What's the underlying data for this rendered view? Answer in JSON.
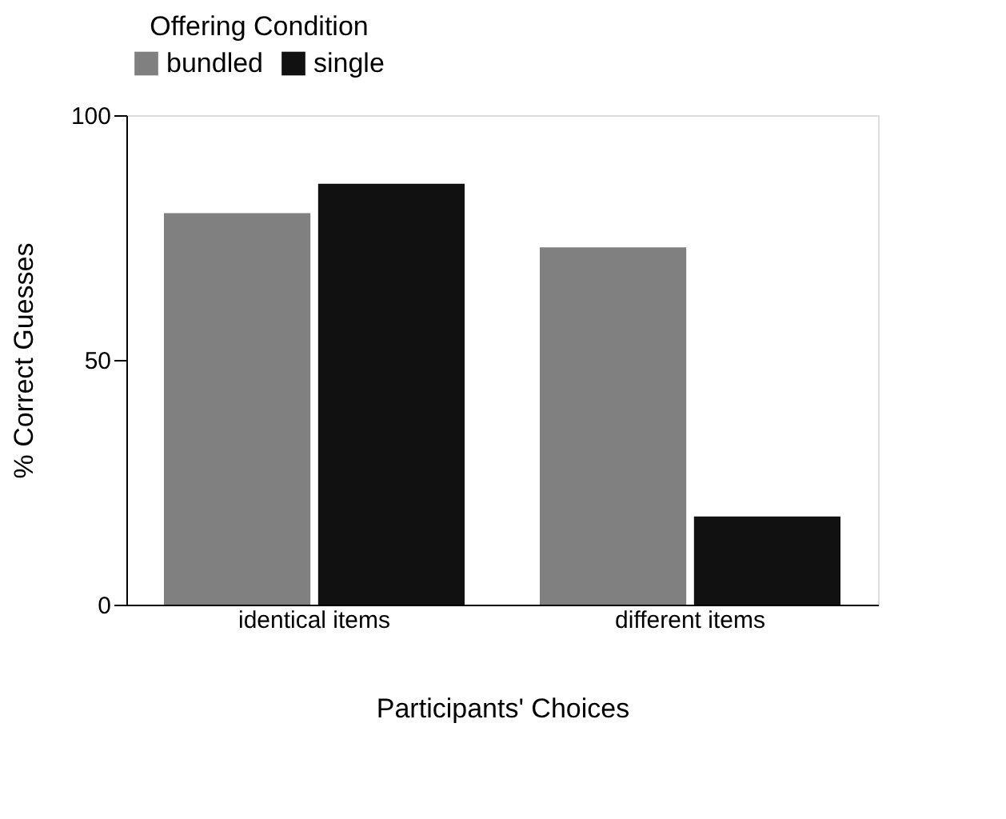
{
  "chart_data": {
    "type": "bar",
    "categories": [
      "identical items",
      "different items"
    ],
    "series": [
      {
        "name": "bundled",
        "color": "#808080",
        "values": [
          80,
          73
        ]
      },
      {
        "name": "single",
        "color": "#111111",
        "values": [
          86,
          18
        ]
      }
    ],
    "xlabel": "Participants' Choices",
    "ylabel": "% Correct Guesses",
    "legend_title": "Offering Condition",
    "ylim": [
      0,
      100
    ],
    "yticks": [
      0,
      50,
      100
    ],
    "grid": false,
    "legend": "top"
  }
}
